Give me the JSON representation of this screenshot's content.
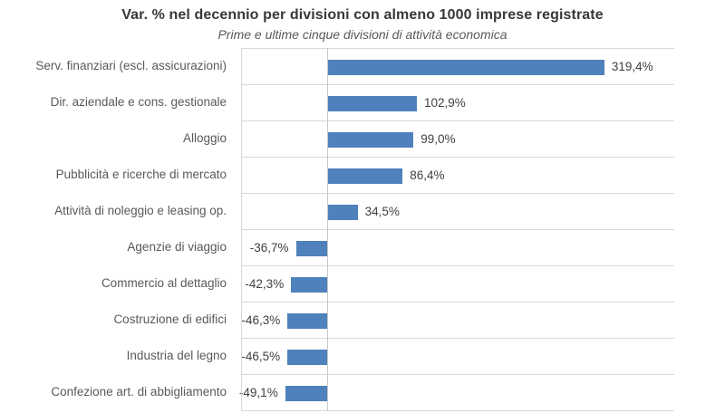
{
  "header": {
    "title": "Var. % nel decennio per divisioni con almeno 1000 imprese registrate",
    "subtitle": "Prime e ultime cinque divisioni di attività economica"
  },
  "colors": {
    "bar": "#4f81bd",
    "row_separator": "#d9d9d9",
    "zero_line": "#c9c9c9",
    "plot_left_border": "#d9d9d9",
    "title_text": "#383838",
    "subtitle_text": "#595959",
    "category_text": "#595959",
    "value_text": "#404040",
    "background": "#ffffff"
  },
  "chart_data": {
    "type": "bar",
    "orientation": "horizontal",
    "title": "Var. % nel decennio per divisioni con almeno 1000 imprese registrate",
    "subtitle": "Prime e ultime cinque divisioni di attività economica",
    "categories": [
      "Serv. finanziari (escl. assicurazioni)",
      "Dir. aziendale e cons. gestionale",
      "Alloggio",
      "Pubblicità e ricerche di mercato",
      "Attività di noleggio e leasing op.",
      "Agenzie di viaggio",
      "Commercio al dettaglio",
      "Costruzione di edifici",
      "Industria del legno",
      "Confezione art. di abbigliamento"
    ],
    "values": [
      319.4,
      102.9,
      99.0,
      86.4,
      34.5,
      -36.7,
      -42.3,
      -46.3,
      -46.5,
      -49.1
    ],
    "value_labels": [
      "319,4%",
      "102,9%",
      "99,0%",
      "86,4%",
      "34,5%",
      "-36,7%",
      "-42,3%",
      "-46,3%",
      "-46,5%",
      "-49,1%"
    ],
    "xlabel": "",
    "ylabel": "",
    "xlim": [
      -100,
      400
    ],
    "grid": "horizontal-row-separators",
    "legend": "none",
    "data_labels": "outside-end",
    "axis_tick_labels_visible": false
  }
}
